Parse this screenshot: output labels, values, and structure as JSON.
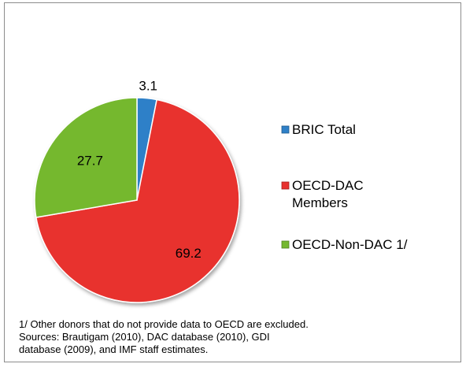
{
  "chart_data": {
    "type": "pie",
    "title": "",
    "categories": [
      "BRIC Total",
      "OECD-DAC Members",
      "OECD-Non-DAC 1/"
    ],
    "values": [
      3.1,
      69.2,
      27.7
    ],
    "data_labels": [
      "3.1",
      "69.2",
      "27.7"
    ],
    "colors": [
      "#2f80c8",
      "#e8302e",
      "#74b82e"
    ],
    "legend": {
      "placement": "right",
      "entries": [
        [
          "BRIC Total"
        ],
        [
          "OECD-DAC",
          "Members"
        ],
        [
          "OECD-Non-DAC 1/"
        ]
      ]
    },
    "grid": false
  },
  "notes": [
    "1/ Other donors that do not provide data to OECD are excluded.",
    "Sources: Brautigam (2010), DAC database (2010), GDI",
    "database (2009), and IMF staff estimates."
  ]
}
